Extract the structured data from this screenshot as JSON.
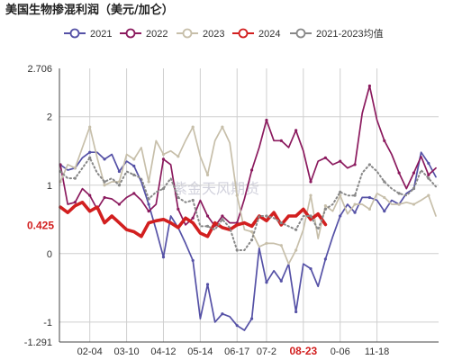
{
  "chart_data": {
    "type": "line",
    "title": "美国生物掺混利润（美元/加仑）",
    "watermark": "紫金天风期货",
    "y_axis": {
      "ylim": [
        -1.291,
        2.706
      ],
      "ticks": [
        {
          "value": 2.706,
          "label": "2.706"
        },
        {
          "value": 2,
          "label": "2"
        },
        {
          "value": 1,
          "label": "1"
        },
        {
          "value": 0,
          "label": "0"
        },
        {
          "value": -1,
          "label": "-1"
        },
        {
          "value": -1.291,
          "label": "-1.291"
        }
      ],
      "current": {
        "value": 0.425,
        "label": "0.425",
        "color": "#d21f1f"
      }
    },
    "x_axis": {
      "type": "week",
      "count": 52,
      "ticks": [
        {
          "index": 4,
          "label": "02-04",
          "highlight": false
        },
        {
          "index": 9,
          "label": "03-10",
          "highlight": false
        },
        {
          "index": 14,
          "label": "04-12",
          "highlight": false
        },
        {
          "index": 19,
          "label": "05-14",
          "highlight": false
        },
        {
          "index": 24,
          "label": "06-17",
          "highlight": false
        },
        {
          "index": 28,
          "label": "07-2",
          "highlight": false
        },
        {
          "index": 33,
          "label": "08-23",
          "highlight": true
        },
        {
          "index": 38,
          "label": "0-06",
          "highlight": false
        },
        {
          "index": 43,
          "label": "11-18",
          "highlight": false
        }
      ]
    },
    "legend": {
      "placement": "top"
    },
    "series": [
      {
        "name": "2021",
        "color": "#5551a6",
        "style": "solid-marker",
        "values": [
          1.3,
          1.22,
          1.25,
          1.4,
          1.48,
          1.48,
          1.38,
          1.45,
          1.2,
          1.35,
          1.28,
          1.05,
          0.72,
          0.35,
          -0.05,
          0.55,
          0.38,
          0.15,
          -0.1,
          -0.95,
          -0.45,
          -1.0,
          -0.88,
          -0.92,
          -1.05,
          -1.12,
          -0.95,
          0.08,
          -0.42,
          -0.25,
          -0.4,
          -0.15,
          -0.85,
          -0.15,
          -0.22,
          -0.48,
          -0.08,
          0.25,
          0.55,
          0.72,
          0.6,
          0.82,
          0.82,
          0.78,
          0.62,
          0.78,
          0.72,
          0.88,
          0.95,
          1.48,
          1.32,
          1.12
        ]
      },
      {
        "name": "2022",
        "color": "#8b1a5e",
        "style": "solid-marker",
        "values": [
          1.3,
          0.72,
          0.75,
          0.95,
          0.85,
          0.65,
          0.82,
          0.8,
          0.72,
          0.82,
          0.88,
          0.78,
          0.62,
          0.72,
          1.38,
          1.3,
          0.65,
          0.42,
          0.52,
          0.78,
          0.55,
          0.4,
          0.55,
          0.45,
          0.45,
          0.8,
          1.22,
          1.55,
          1.95,
          1.65,
          1.65,
          1.55,
          1.8,
          1.5,
          1.05,
          1.35,
          1.4,
          1.3,
          1.35,
          1.25,
          1.3,
          2.05,
          2.45,
          1.95,
          1.65,
          1.45,
          1.18,
          0.95,
          1.18,
          1.42,
          1.15,
          1.25
        ]
      },
      {
        "name": "2023",
        "color": "#c7bfaa",
        "style": "solid-marker",
        "values": [
          1.05,
          1.3,
          1.25,
          1.55,
          1.85,
          1.4,
          1.0,
          1.05,
          1.05,
          1.45,
          1.38,
          1.55,
          1.05,
          1.65,
          1.45,
          1.5,
          1.42,
          1.65,
          1.85,
          1.42,
          1.15,
          1.65,
          1.85,
          1.62,
          0.85,
          0.35,
          0.32,
          0.1,
          0.15,
          0.15,
          0.12,
          -0.15,
          0.05,
          0.35,
          0.85,
          0.22,
          0.7,
          0.62,
          0.85,
          0.58,
          0.72,
          0.72,
          0.65,
          0.88,
          0.82,
          0.72,
          0.72,
          0.75,
          0.72,
          0.78,
          0.85,
          0.55
        ]
      },
      {
        "name": "2024",
        "color": "#d21f1f",
        "style": "thick",
        "values": [
          0.68,
          0.6,
          0.7,
          0.75,
          0.62,
          0.68,
          0.45,
          0.55,
          0.45,
          0.35,
          0.32,
          0.25,
          0.45,
          0.48,
          0.5,
          0.45,
          0.38,
          0.52,
          0.45,
          0.3,
          0.25,
          0.45,
          0.38,
          0.35,
          0.42,
          0.45,
          0.4,
          0.55,
          0.48,
          0.6,
          0.42,
          0.55,
          0.55,
          0.65,
          0.5,
          0.58,
          0.425
        ]
      },
      {
        "name": "2021-2023均值",
        "color": "#888888",
        "style": "dotted",
        "values": [
          1.2,
          1.1,
          1.1,
          1.25,
          1.4,
          1.18,
          1.05,
          1.1,
          1.0,
          1.2,
          1.15,
          1.1,
          0.8,
          0.9,
          0.95,
          1.1,
          0.82,
          0.75,
          0.78,
          0.4,
          0.4,
          0.35,
          0.5,
          0.38,
          0.05,
          0.05,
          0.2,
          0.55,
          0.55,
          0.52,
          0.45,
          0.4,
          0.35,
          0.55,
          0.55,
          0.35,
          0.65,
          0.72,
          0.9,
          0.85,
          0.85,
          1.18,
          1.3,
          1.2,
          1.05,
          0.95,
          0.88,
          0.85,
          0.95,
          1.22,
          1.1,
          0.98
        ]
      }
    ]
  }
}
